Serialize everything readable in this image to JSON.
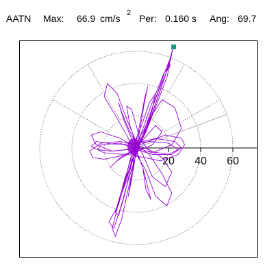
{
  "header": {
    "station": "AATN",
    "max_label": "Max:",
    "max_value": "66.9",
    "max_unit": "cm/s",
    "max_unit_exp": "2",
    "per_label": "Per:",
    "per_value": "0.160 s",
    "ang_label": "Ang:",
    "ang_value": "69.7"
  },
  "chart_data": {
    "type": "scatter",
    "subtype": "polar-particle-motion",
    "title": "AATN   Max:   66.9 cm/s2  Per:  0.160 s   Ang:  69.7",
    "xlabel": "",
    "ylabel": "",
    "radial_ticks": [
      20,
      40,
      60
    ],
    "radial_tick_labels": [
      "20",
      "40",
      "60"
    ],
    "rings": [
      20,
      40,
      60
    ],
    "ring_style": "dotted",
    "spoke_angles_deg": [
      30,
      60,
      120,
      150
    ],
    "grid": true,
    "legend": "none",
    "max_point": {
      "x": 23.2,
      "y": 62.8
    },
    "series": [
      {
        "color": "#9400d3",
        "points": [
          [
            0,
            0
          ],
          [
            3,
            4
          ],
          [
            10,
            22
          ],
          [
            18,
            45
          ],
          [
            23,
            63
          ],
          [
            21,
            54
          ],
          [
            15,
            36
          ],
          [
            7,
            13
          ],
          [
            2,
            2
          ],
          [
            -3,
            -6
          ],
          [
            -8,
            -22
          ],
          [
            -12,
            -38
          ],
          [
            -15,
            -50
          ],
          [
            -13,
            -55
          ],
          [
            -9,
            -44
          ],
          [
            -6,
            -30
          ],
          [
            -2,
            -12
          ],
          [
            2,
            6
          ],
          [
            9,
            26
          ],
          [
            17,
            46
          ],
          [
            21,
            52
          ],
          [
            19,
            44
          ],
          [
            13,
            28
          ],
          [
            6,
            10
          ],
          [
            0,
            -2
          ],
          [
            -6,
            -18
          ],
          [
            -11,
            -35
          ],
          [
            -17,
            -46
          ],
          [
            -14,
            -50
          ],
          [
            -10,
            -38
          ],
          [
            -5,
            -20
          ],
          [
            0,
            -4
          ],
          [
            6,
            14
          ],
          [
            14,
            36
          ],
          [
            20,
            50
          ],
          [
            22,
            58
          ],
          [
            18,
            48
          ],
          [
            11,
            28
          ],
          [
            4,
            8
          ],
          [
            -2,
            -6
          ],
          [
            -9,
            -26
          ],
          [
            -13,
            -40
          ],
          [
            -11,
            -42
          ],
          [
            -7,
            -28
          ],
          [
            -3,
            -10
          ],
          [
            1,
            4
          ],
          [
            8,
            18
          ],
          [
            16,
            30
          ],
          [
            24,
            25
          ],
          [
            28,
            12
          ],
          [
            22,
            2
          ],
          [
            10,
            -3
          ],
          [
            0,
            0
          ],
          [
            -10,
            6
          ],
          [
            -22,
            10
          ],
          [
            -28,
            8
          ],
          [
            -25,
            2
          ],
          [
            -15,
            -2
          ],
          [
            -5,
            -1
          ],
          [
            5,
            3
          ],
          [
            18,
            8
          ],
          [
            28,
            6
          ],
          [
            30,
            2
          ],
          [
            26,
            -4
          ],
          [
            15,
            -8
          ],
          [
            5,
            -6
          ],
          [
            -5,
            -4
          ],
          [
            -20,
            -7
          ],
          [
            -27,
            -6
          ],
          [
            -29,
            -2
          ],
          [
            -22,
            3
          ],
          [
            -10,
            4
          ],
          [
            0,
            2
          ],
          [
            8,
            -4
          ],
          [
            16,
            -16
          ],
          [
            22,
            -28
          ],
          [
            19,
            -36
          ],
          [
            12,
            -30
          ],
          [
            6,
            -14
          ],
          [
            0,
            -4
          ],
          [
            -6,
            8
          ],
          [
            -14,
            22
          ],
          [
            -20,
            32
          ],
          [
            -18,
            40
          ],
          [
            -12,
            34
          ],
          [
            -6,
            18
          ],
          [
            -1,
            6
          ],
          [
            4,
            -4
          ],
          [
            10,
            -18
          ],
          [
            18,
            -24
          ],
          [
            22,
            -15
          ],
          [
            16,
            -6
          ],
          [
            8,
            -1
          ],
          [
            0,
            2
          ],
          [
            -4,
            14
          ],
          [
            -6,
            26
          ],
          [
            -3,
            24
          ],
          [
            0,
            14
          ],
          [
            2,
            6
          ],
          [
            8,
            -2
          ],
          [
            20,
            -4
          ],
          [
            26,
            -1
          ],
          [
            20,
            3
          ],
          [
            8,
            4
          ],
          [
            0,
            3
          ],
          [
            -12,
            2
          ],
          [
            -25,
            4
          ],
          [
            -28,
            1
          ],
          [
            -20,
            -3
          ],
          [
            -8,
            -4
          ],
          [
            0,
            -2
          ],
          [
            4,
            -12
          ],
          [
            6,
            -26
          ],
          [
            9,
            -32
          ],
          [
            7,
            -24
          ],
          [
            4,
            -12
          ],
          [
            1,
            -4
          ],
          [
            -3,
            6
          ],
          [
            -8,
            18
          ],
          [
            -11,
            28
          ],
          [
            -9,
            22
          ],
          [
            -4,
            10
          ],
          [
            0,
            3
          ],
          [
            12,
            6
          ],
          [
            24,
            4
          ],
          [
            28,
            0
          ],
          [
            22,
            -4
          ],
          [
            10,
            -4
          ],
          [
            0,
            -1
          ],
          [
            -10,
            3
          ],
          [
            -22,
            2
          ],
          [
            -24,
            -1
          ],
          [
            -16,
            -2
          ],
          [
            -6,
            -1
          ],
          [
            0,
            0
          ],
          [
            6,
            12
          ],
          [
            10,
            24
          ],
          [
            12,
            34
          ],
          [
            8,
            28
          ],
          [
            4,
            16
          ],
          [
            0,
            6
          ],
          [
            -4,
            -8
          ],
          [
            -7,
            -20
          ],
          [
            -9,
            -28
          ],
          [
            -6,
            -20
          ],
          [
            -3,
            -8
          ],
          [
            0,
            -2
          ],
          [
            2,
            10
          ],
          [
            5,
            28
          ],
          [
            7,
            38
          ],
          [
            5,
            30
          ],
          [
            2,
            14
          ],
          [
            0,
            4
          ],
          [
            -2,
            -10
          ],
          [
            -4,
            -24
          ],
          [
            -5,
            -30
          ],
          [
            -3,
            -20
          ],
          [
            -1,
            -8
          ],
          [
            0,
            0
          ],
          [
            5,
            6
          ],
          [
            12,
            14
          ],
          [
            16,
            10
          ],
          [
            10,
            2
          ],
          [
            3,
            -1
          ],
          [
            -4,
            -3
          ],
          [
            -12,
            -8
          ],
          [
            -16,
            -12
          ],
          [
            -10,
            -6
          ],
          [
            -3,
            -2
          ],
          [
            0,
            0
          ]
        ]
      }
    ]
  }
}
